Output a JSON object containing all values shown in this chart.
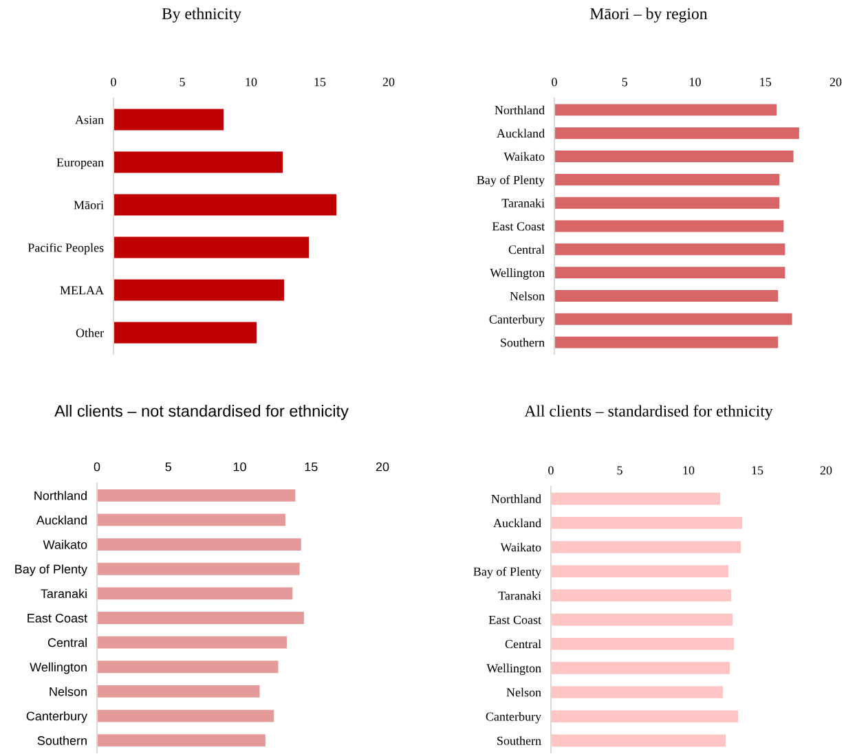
{
  "chart_data": [
    {
      "type": "bar",
      "orientation": "horizontal",
      "title": "By ethnicity",
      "categories": [
        "Asian",
        "European",
        "Māori",
        "Pacific Peoples",
        "MELAA",
        "Other"
      ],
      "values": [
        8.0,
        12.3,
        16.2,
        14.2,
        12.4,
        10.4
      ],
      "color": "#c00000",
      "xlim": [
        0,
        20
      ],
      "xticks": [
        0,
        5,
        10,
        15,
        20
      ],
      "grid": false,
      "legend": false
    },
    {
      "type": "bar",
      "orientation": "horizontal",
      "title": "Māori – by region",
      "categories": [
        "Northland",
        "Auckland",
        "Waikato",
        "Bay of Plenty",
        "Taranaki",
        "East Coast",
        "Central",
        "Wellington",
        "Nelson",
        "Canterbury",
        "Southern"
      ],
      "values": [
        15.8,
        17.4,
        17.0,
        16.0,
        16.0,
        16.3,
        16.4,
        16.4,
        15.9,
        16.9,
        15.9
      ],
      "color": "#d96666",
      "xlim": [
        0,
        20
      ],
      "xticks": [
        0,
        5,
        10,
        15,
        20
      ],
      "grid": false,
      "legend": false
    },
    {
      "type": "bar",
      "orientation": "horizontal",
      "title": "All clients – not standardised for ethnicity",
      "categories": [
        "Northland",
        "Auckland",
        "Waikato",
        "Bay of Plenty",
        "Taranaki",
        "East Coast",
        "Central",
        "Wellington",
        "Nelson",
        "Canterbury",
        "Southern"
      ],
      "values": [
        13.9,
        13.2,
        14.3,
        14.2,
        13.7,
        14.5,
        13.3,
        12.7,
        11.4,
        12.4,
        11.8
      ],
      "color": "#e59a9a",
      "xlim": [
        0,
        20
      ],
      "xticks": [
        0,
        5,
        10,
        15,
        20
      ],
      "grid": false,
      "legend": false
    },
    {
      "type": "bar",
      "orientation": "horizontal",
      "title": "All clients – standardised for ethnicity",
      "categories": [
        "Northland",
        "Auckland",
        "Waikato",
        "Bay of Plenty",
        "Taranaki",
        "East Coast",
        "Central",
        "Wellington",
        "Nelson",
        "Canterbury",
        "Southern"
      ],
      "values": [
        12.3,
        13.9,
        13.8,
        12.9,
        13.1,
        13.2,
        13.3,
        13.0,
        12.5,
        13.6,
        12.7
      ],
      "color": "#ffc4c4",
      "xlim": [
        0,
        20
      ],
      "xticks": [
        0,
        5,
        10,
        15,
        20
      ],
      "grid": false,
      "legend": false
    }
  ]
}
